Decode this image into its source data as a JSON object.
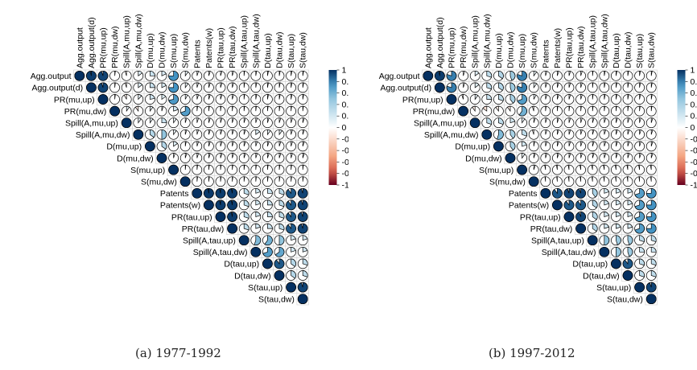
{
  "chart_data": [
    {
      "type": "heatmap",
      "subtype": "correlation-pie-matrix",
      "caption": "(a) 1977-1992",
      "variables": [
        "Agg.output",
        "Agg.output(d)",
        "PR(mu,up)",
        "PR(mu,dw)",
        "Spill(A,mu,up)",
        "Spill(A,mu,dw)",
        "D(mu,up)",
        "D(mu,dw)",
        "S(mu,up)",
        "S(mu,dw)",
        "Patents",
        "Patents(w)",
        "PR(tau,up)",
        "PR(tau,dw)",
        "Spill(A,tau,up)",
        "Spill(A,tau,dw)",
        "D(tau,up)",
        "D(tau,dw)",
        "S(tau,up)",
        "S(tau,dw)"
      ],
      "upper_triangle_rows": [
        [
          1,
          0.97,
          0.95,
          0.02,
          -0.05,
          0.15,
          0.25,
          0.18,
          0.75,
          0.1,
          0.05,
          0.05,
          0.05,
          0.05,
          0.02,
          0.03,
          0.03,
          0.03,
          0.03,
          0.03
        ],
        [
          1,
          0.95,
          0.02,
          -0.05,
          0.15,
          0.25,
          0.18,
          0.75,
          0.1,
          0.05,
          0.05,
          0.05,
          0.05,
          0.02,
          0.03,
          0.03,
          0.03,
          0.03,
          0.03
        ],
        [
          1,
          0.02,
          -0.08,
          0.12,
          0.22,
          0.15,
          0.72,
          0.08,
          0.05,
          0.05,
          0.05,
          0.05,
          0.02,
          0.03,
          0.03,
          0.03,
          0.03,
          0.03
        ],
        [
          1,
          0.1,
          -0.1,
          0.1,
          0.05,
          0.2,
          0.7,
          0.02,
          0.02,
          0.02,
          0.02,
          0.02,
          0.02,
          0.02,
          0.02,
          0.02,
          0.02
        ],
        [
          1,
          0.1,
          0.1,
          0.25,
          0.1,
          0.05,
          0.05,
          0.05,
          0.05,
          0.05,
          0.05,
          0.05,
          0.05,
          0.05,
          0.05,
          0.05
        ],
        [
          1,
          0.35,
          0.5,
          0.1,
          0.05,
          0.05,
          0.05,
          0.05,
          0.05,
          0.05,
          0.15,
          0.1,
          0.1,
          0.05,
          0.05
        ],
        [
          1,
          0.35,
          0.15,
          0.03,
          0.05,
          0.05,
          0.05,
          0.05,
          0.05,
          0.05,
          0.05,
          0.05,
          0.05,
          0.05
        ],
        [
          1,
          0.05,
          0.05,
          0.05,
          0.05,
          0.05,
          0.05,
          0.05,
          0.05,
          0.05,
          0.05,
          0.05,
          0.05
        ],
        [
          1,
          0.02,
          0.02,
          0.02,
          0.02,
          0.02,
          0.02,
          0.02,
          0.02,
          0.02,
          0.02,
          0.02
        ],
        [
          1,
          0.02,
          0.02,
          0.02,
          0.02,
          0.02,
          0.02,
          0.02,
          0.02,
          0.02,
          0.02
        ],
        [
          1,
          0.98,
          0.97,
          0.97,
          0.3,
          0.2,
          0.25,
          0.3,
          0.9,
          0.95
        ],
        [
          1,
          0.97,
          0.97,
          0.3,
          0.2,
          0.25,
          0.3,
          0.9,
          0.95
        ],
        [
          1,
          0.97,
          0.3,
          0.2,
          0.25,
          0.3,
          0.9,
          0.95
        ],
        [
          1,
          0.3,
          0.2,
          0.25,
          0.3,
          0.9,
          0.95
        ],
        [
          1,
          0.55,
          0.6,
          0.5,
          0.2,
          0.2
        ],
        [
          1,
          0.7,
          0.65,
          0.2,
          0.2
        ],
        [
          1,
          0.9,
          0.35,
          0.3
        ],
        [
          1,
          0.35,
          0.3
        ],
        [
          1,
          0.95
        ],
        [
          1
        ]
      ],
      "color_scale": {
        "min": -1,
        "max": 1,
        "ticks": [
          "1",
          "0.8",
          "0.6",
          "0.4",
          "0.2",
          "0",
          "-0.2",
          "-0.4",
          "-0.6",
          "-0.8",
          "-1"
        ],
        "negative_color": "#67001f",
        "neutral_color": "#ffffff",
        "positive_color": "#053061"
      }
    },
    {
      "type": "heatmap",
      "subtype": "correlation-pie-matrix",
      "caption": "(b) 1997-2012",
      "variables": [
        "Agg.output",
        "Agg.output(d)",
        "PR(mu,up)",
        "PR(mu,dw)",
        "Spill(A,mu,up)",
        "Spill(A,mu,dw)",
        "D(mu,up)",
        "D(mu,dw)",
        "S(mu,up)",
        "S(mu,dw)",
        "Patents",
        "Patents(w)",
        "PR(tau,up)",
        "PR(tau,dw)",
        "Spill(A,tau,up)",
        "Spill(A,tau,dw)",
        "D(tau,up)",
        "D(tau,dw)",
        "S(tau,up)",
        "S(tau,dw)"
      ],
      "upper_triangle_rows": [
        [
          1,
          0.97,
          0.8,
          0.05,
          0.15,
          0.3,
          0.35,
          0.45,
          0.8,
          0.1,
          0.05,
          0.05,
          0.05,
          0.05,
          0.02,
          0.03,
          0.03,
          0.03,
          0.03,
          0.03
        ],
        [
          1,
          0.8,
          0.05,
          0.15,
          0.3,
          0.35,
          0.45,
          0.8,
          0.1,
          0.05,
          0.05,
          0.05,
          0.05,
          0.02,
          0.03,
          0.03,
          0.03,
          0.03,
          0.03
        ],
        [
          1,
          -0.05,
          0.1,
          0.25,
          0.3,
          0.4,
          0.7,
          0.08,
          0.05,
          0.05,
          0.05,
          0.05,
          0.02,
          0.03,
          0.03,
          0.03,
          0.03,
          0.03
        ],
        [
          1,
          -0.1,
          -0.15,
          -0.1,
          -0.1,
          0.6,
          -0.05,
          0.02,
          0.02,
          0.02,
          0.02,
          0.02,
          0.02,
          0.02,
          0.02,
          0.02,
          0.02
        ],
        [
          1,
          0.3,
          0.3,
          0.2,
          0.1,
          0.05,
          0.05,
          0.05,
          0.05,
          0.05,
          0.05,
          0.05,
          0.05,
          0.05,
          0.05,
          0.05
        ],
        [
          1,
          0.55,
          0.4,
          0.3,
          -0.05,
          0.05,
          0.05,
          0.05,
          0.05,
          0.05,
          0.05,
          0.05,
          0.05,
          0.05,
          0.05
        ],
        [
          1,
          0.4,
          0.2,
          0.03,
          0.05,
          0.05,
          0.05,
          0.05,
          0.05,
          0.05,
          0.05,
          0.05,
          0.05,
          0.05
        ],
        [
          1,
          0.1,
          0.05,
          0.05,
          0.05,
          0.05,
          0.05,
          0.05,
          0.05,
          0.05,
          0.05,
          0.05,
          0.05
        ],
        [
          1,
          0.05,
          -0.03,
          -0.03,
          -0.03,
          -0.03,
          -0.03,
          -0.03,
          -0.03,
          -0.03,
          -0.03,
          -0.03
        ],
        [
          1,
          -0.02,
          -0.02,
          -0.02,
          -0.02,
          -0.02,
          -0.02,
          -0.02,
          -0.02,
          -0.02,
          -0.02
        ],
        [
          1,
          0.9,
          0.95,
          0.95,
          0.4,
          0.2,
          0.2,
          0.2,
          0.7,
          0.75
        ],
        [
          1,
          0.9,
          0.9,
          0.35,
          0.2,
          0.2,
          0.2,
          0.7,
          0.75
        ],
        [
          1,
          0.95,
          0.35,
          0.2,
          0.2,
          0.2,
          0.7,
          0.75
        ],
        [
          1,
          0.35,
          0.2,
          0.2,
          0.2,
          0.7,
          0.75
        ],
        [
          1,
          0.5,
          0.45,
          0.45,
          0.3,
          0.3
        ],
        [
          1,
          0.5,
          0.45,
          0.25,
          0.25
        ],
        [
          1,
          0.9,
          0.3,
          0.3
        ],
        [
          1,
          0.3,
          0.3
        ],
        [
          1,
          0.95
        ],
        [
          1
        ]
      ],
      "color_scale": {
        "min": -1,
        "max": 1,
        "ticks": [
          "1",
          "0.8",
          "0.6",
          "0.4",
          "0.2",
          "0",
          "-0.2",
          "-0.4",
          "-0.6",
          "-0.8",
          "-1"
        ],
        "negative_color": "#67001f",
        "neutral_color": "#ffffff",
        "positive_color": "#053061"
      }
    }
  ]
}
